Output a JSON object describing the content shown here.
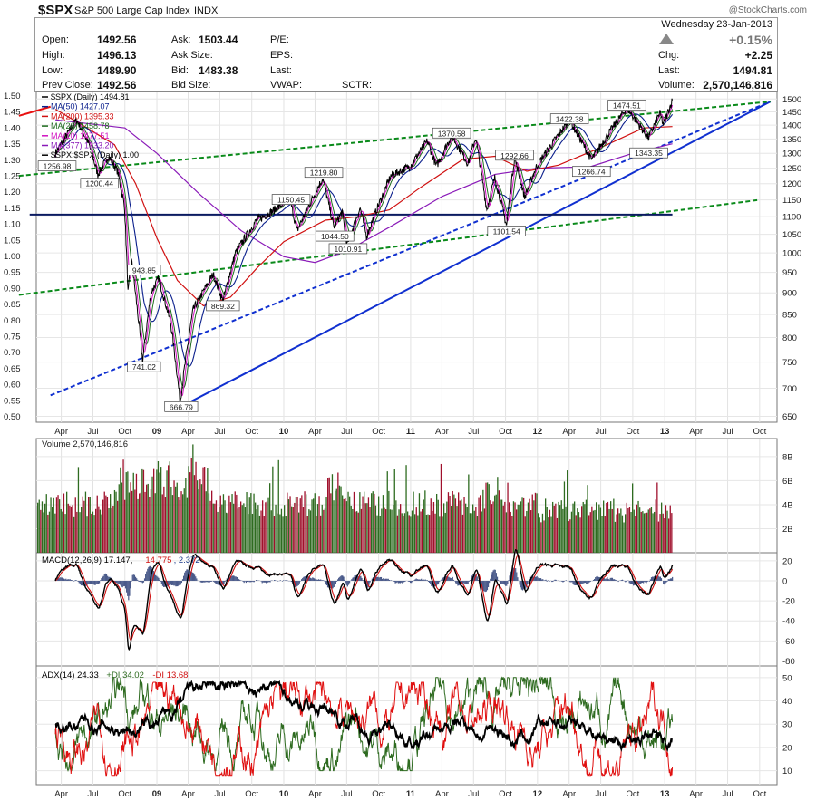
{
  "header": {
    "symbol": "$SPX",
    "name": "S&P 500 Large Cap Index",
    "exchange": "INDX",
    "watermark": "@StockCharts.com",
    "date": "Wednesday  23-Jan-2013",
    "pct_change": "+0.15%",
    "chg_label": "Chg:",
    "chg_value": "+2.25",
    "last_label": "Last:",
    "last_value": "1494.81",
    "volume_label": "Volume:",
    "volume_value": "2,570,146,816",
    "up_color": "#888888",
    "quotes": [
      {
        "label": "Open:",
        "value": "1492.56"
      },
      {
        "label": "High:",
        "value": "1496.13"
      },
      {
        "label": "Low:",
        "value": "1489.90"
      },
      {
        "label": "Prev Close:",
        "value": "1492.56"
      }
    ],
    "quotes2": [
      {
        "label": "Ask:",
        "value": "1503.44"
      },
      {
        "label": "Ask Size:",
        "value": ""
      },
      {
        "label": "Bid:",
        "value": "1483.38"
      },
      {
        "label": "Bid Size:",
        "value": ""
      }
    ],
    "quotes3": [
      "P/E:",
      "EPS:",
      "Last:",
      "VWAP:"
    ],
    "sctr": "SCTR:"
  },
  "chart_data": [
    {
      "type": "line",
      "panel": "price",
      "legend": [
        {
          "text": "$SPX (Daily) 1494.81",
          "color": "#000000"
        },
        {
          "text": "MA(50) 1427.07",
          "color": "#0b1f8c"
        },
        {
          "text": "MA(200) 1395.33",
          "color": "#d01010"
        },
        {
          "text": "MA(20) 1458.78",
          "color": "#1d6b1d"
        },
        {
          "text": "MA(10) 1477.51",
          "color": "#d010c0"
        },
        {
          "text": "MA(377) 1333.20",
          "color": "#8a1ab8"
        },
        {
          "text": "$SPX:$SPX (Daily) 1.00",
          "color": "#000000"
        }
      ],
      "x_ticks": [
        "Apr",
        "Jul",
        "Oct",
        "09",
        "Apr",
        "Jul",
        "Oct",
        "10",
        "Apr",
        "Jul",
        "Oct",
        "11",
        "Apr",
        "Jul",
        "Oct",
        "12",
        "Apr",
        "Jul",
        "Oct",
        "13",
        "Apr",
        "Jul",
        "Oct"
      ],
      "y_right_ticks": [
        1500,
        1450,
        1400,
        1350,
        1300,
        1250,
        1200,
        1150,
        1100,
        1050,
        1000,
        950,
        900,
        850,
        800,
        750,
        700,
        650
      ],
      "y_left_ticks": [
        "1.50",
        "1.45",
        "1.40",
        "1.35",
        "1.30",
        "1.25",
        "1.20",
        "1.15",
        "1.10",
        "1.05",
        "1.00",
        "0.95",
        "0.90",
        "0.85",
        "0.80",
        "0.75",
        "0.70",
        "0.65",
        "0.60",
        "0.55",
        "0.50"
      ],
      "ylim": [
        640,
        1530
      ],
      "price_path": [
        [
          "2008-03-15",
          1300
        ],
        [
          "2008-05-15",
          1420
        ],
        [
          "2008-06-20",
          1330
        ],
        [
          "2008-07-15",
          1230
        ],
        [
          "2008-08-15",
          1290
        ],
        [
          "2008-09-10",
          1240
        ],
        [
          "2008-09-30",
          1130
        ],
        [
          "2008-10-10",
          900
        ],
        [
          "2008-10-20",
          980
        ],
        [
          "2008-11-21",
          752
        ],
        [
          "2008-12-15",
          900
        ],
        [
          "2009-01-06",
          935
        ],
        [
          "2009-02-10",
          830
        ],
        [
          "2009-03-09",
          676
        ],
        [
          "2009-04-15",
          860
        ],
        [
          "2009-06-12",
          945
        ],
        [
          "2009-07-10",
          880
        ],
        [
          "2009-08-15",
          1000
        ],
        [
          "2009-10-15",
          1090
        ],
        [
          "2009-11-20",
          1110
        ],
        [
          "2010-01-19",
          1150
        ],
        [
          "2010-02-08",
          1060
        ],
        [
          "2010-04-23",
          1217
        ],
        [
          "2010-05-25",
          1070
        ],
        [
          "2010-06-18",
          1115
        ],
        [
          "2010-07-02",
          1022
        ],
        [
          "2010-08-09",
          1125
        ],
        [
          "2010-08-27",
          1045
        ],
        [
          "2010-11-05",
          1225
        ],
        [
          "2010-12-31",
          1258
        ],
        [
          "2011-02-18",
          1343
        ],
        [
          "2011-03-16",
          1256
        ],
        [
          "2011-04-29",
          1363
        ],
        [
          "2011-06-15",
          1265
        ],
        [
          "2011-07-07",
          1355
        ],
        [
          "2011-08-08",
          1120
        ],
        [
          "2011-08-31",
          1218
        ],
        [
          "2011-10-04",
          1075
        ],
        [
          "2011-10-27",
          1285
        ],
        [
          "2011-11-25",
          1158
        ],
        [
          "2011-12-30",
          1258
        ],
        [
          "2012-04-02",
          1419
        ],
        [
          "2012-06-04",
          1278
        ],
        [
          "2012-07-20",
          1363
        ],
        [
          "2012-09-14",
          1465
        ],
        [
          "2012-11-15",
          1353
        ],
        [
          "2012-12-18",
          1446
        ],
        [
          "2012-12-28",
          1402
        ],
        [
          "2013-01-23",
          1494.81
        ]
      ],
      "ma200_path": [
        [
          "2008-03-15",
          1460
        ],
        [
          "2008-06-01",
          1400
        ],
        [
          "2008-09-01",
          1330
        ],
        [
          "2008-11-01",
          1200
        ],
        [
          "2009-01-01",
          1040
        ],
        [
          "2009-03-01",
          930
        ],
        [
          "2009-05-15",
          870
        ],
        [
          "2009-08-01",
          890
        ],
        [
          "2009-10-15",
          960
        ],
        [
          "2010-01-01",
          1030
        ],
        [
          "2010-05-01",
          1090
        ],
        [
          "2010-08-01",
          1100
        ],
        [
          "2010-11-01",
          1120
        ],
        [
          "2011-02-01",
          1190
        ],
        [
          "2011-06-01",
          1280
        ],
        [
          "2011-09-01",
          1290
        ],
        [
          "2011-12-01",
          1240
        ],
        [
          "2012-03-01",
          1260
        ],
        [
          "2012-07-01",
          1320
        ],
        [
          "2012-11-01",
          1390
        ],
        [
          "2013-01-23",
          1395
        ]
      ],
      "ma377_path": [
        [
          "2008-03-15",
          1420
        ],
        [
          "2008-10-01",
          1390
        ],
        [
          "2009-01-01",
          1300
        ],
        [
          "2009-05-01",
          1170
        ],
        [
          "2009-09-01",
          1060
        ],
        [
          "2010-01-01",
          990
        ],
        [
          "2010-04-01",
          975
        ],
        [
          "2010-07-01",
          1005
        ],
        [
          "2010-11-01",
          1070
        ],
        [
          "2011-04-01",
          1160
        ],
        [
          "2011-09-01",
          1230
        ],
        [
          "2012-01-01",
          1250
        ],
        [
          "2012-06-01",
          1255
        ],
        [
          "2012-10-01",
          1300
        ],
        [
          "2013-01-23",
          1333
        ]
      ],
      "annotations": [
        {
          "text": "1256.98",
          "date": "2008-03-20",
          "price": 1256
        },
        {
          "text": "1200.44",
          "date": "2008-07-20",
          "price": 1200
        },
        {
          "text": "943.85",
          "date": "2008-11-25",
          "price": 955
        },
        {
          "text": "741.02",
          "date": "2008-11-25",
          "price": 740
        },
        {
          "text": "666.79",
          "date": "2009-03-12",
          "price": 666
        },
        {
          "text": "869.32",
          "date": "2009-07-10",
          "price": 869
        },
        {
          "text": "1150.45",
          "date": "2010-01-22",
          "price": 1150
        },
        {
          "text": "1219.80",
          "date": "2010-04-26",
          "price": 1235
        },
        {
          "text": "1044.50",
          "date": "2010-05-28",
          "price": 1044
        },
        {
          "text": "1010.91",
          "date": "2010-07-05",
          "price": 1010
        },
        {
          "text": "1370.58",
          "date": "2011-04-29",
          "price": 1370
        },
        {
          "text": "1101.54",
          "date": "2011-10-04",
          "price": 1058
        },
        {
          "text": "1292.66",
          "date": "2011-10-27",
          "price": 1292
        },
        {
          "text": "1422.38",
          "date": "2012-04-02",
          "price": 1422
        },
        {
          "text": "1266.74",
          "date": "2012-06-04",
          "price": 1238
        },
        {
          "text": "1474.51",
          "date": "2012-09-14",
          "price": 1474
        },
        {
          "text": "1343.35",
          "date": "2012-11-16",
          "price": 1300
        }
      ],
      "trendlines": [
        {
          "style": "solid",
          "color": "#1030d0",
          "from": [
            "2009-03-09",
            666
          ],
          "to": [
            "2013-11-01",
            1490
          ]
        },
        {
          "style": "dashed",
          "color": "#1030d0",
          "from": [
            "2008-03-01",
            687
          ],
          "to": [
            "2013-11-01",
            1490
          ]
        },
        {
          "style": "dashed",
          "color": "#0a8a1a",
          "from": [
            "2007-12-01",
            1225
          ],
          "to": [
            "2013-11-01",
            1490
          ]
        },
        {
          "style": "dashed",
          "color": "#0a8a1a",
          "from": [
            "2007-12-01",
            895
          ],
          "to": [
            "2013-10-01",
            1150
          ]
        },
        {
          "style": "solid",
          "color": "#e81010",
          "from": [
            "2007-12-01",
            1435
          ],
          "to": [
            "2008-03-01",
            1470
          ]
        },
        {
          "style": "solid",
          "color": "#0a1a60",
          "from": [
            "2008-01-01",
            1106
          ],
          "to": [
            "2013-01-23",
            1106
          ]
        }
      ]
    },
    {
      "type": "bar",
      "panel": "volume",
      "title": "Volume 2,570,146,816",
      "y_ticks": [
        "8B",
        "6B",
        "4B",
        "2B"
      ],
      "up_color": "#2e6b20",
      "down_color": "#a0102c"
    },
    {
      "type": "line",
      "panel": "macd",
      "title_parts": [
        {
          "text": "MACD(12,26,9) 17.147, ",
          "color": "#000000"
        },
        {
          "text": "14.775",
          "color": "#d01010"
        },
        {
          "text": ", 2.372",
          "color": "#1a3a8a"
        }
      ],
      "y_ticks": [
        20,
        0,
        -20,
        -40,
        -60,
        -80
      ],
      "ylim": [
        -85,
        28
      ]
    },
    {
      "type": "line",
      "panel": "adx",
      "title_parts": [
        {
          "text": "ADX(14) 24.33 ",
          "color": "#000000"
        },
        {
          "text": "+DI 34.02 ",
          "color": "#2e6b20"
        },
        {
          "text": "-DI 13.68",
          "color": "#d01010"
        }
      ],
      "y_ticks": [
        50,
        40,
        30,
        20,
        10
      ],
      "ylim": [
        4,
        55
      ]
    }
  ]
}
